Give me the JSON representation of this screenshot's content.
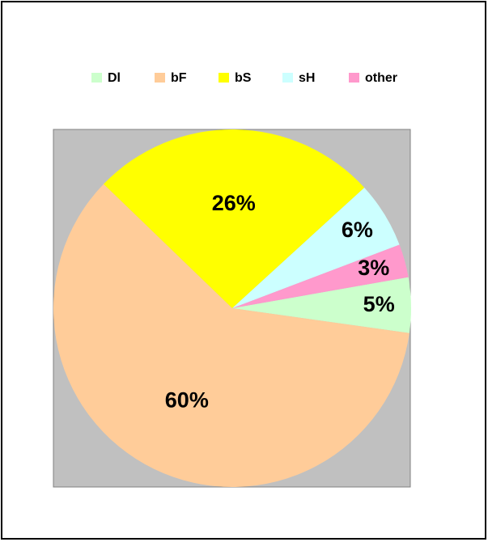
{
  "chart_data": {
    "type": "pie",
    "categories": [
      "Dl",
      "bF",
      "bS",
      "sH",
      "other"
    ],
    "values": [
      5,
      60,
      26,
      6,
      3
    ],
    "value_labels": [
      "5%",
      "60%",
      "26%",
      "6%",
      "3%"
    ],
    "colors": [
      "#CCFFCC",
      "#FFCC99",
      "#FFFF00",
      "#CCFFFF",
      "#FF99CC"
    ],
    "legend": "top"
  }
}
